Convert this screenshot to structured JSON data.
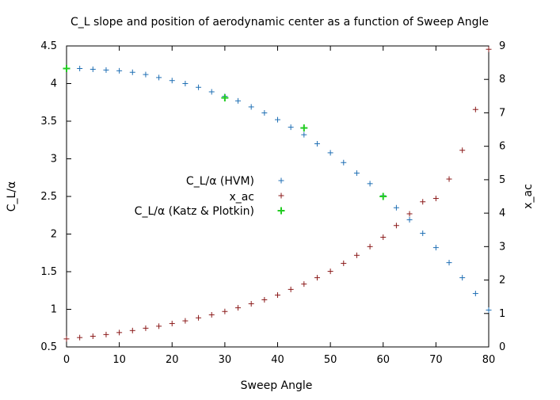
{
  "chart_data": {
    "type": "scatter",
    "title": "C_L slope and position of aerodynamic center as a function of Sweep Angle",
    "xlabel": "Sweep Angle",
    "ylabel": "C_L/α",
    "y2label": "x_ac",
    "xlim": [
      0,
      80
    ],
    "ylim": [
      0.5,
      4.5
    ],
    "y2lim": [
      0,
      9
    ],
    "grid": false,
    "legend_position": "center-left",
    "x_ticks": [
      "0",
      "10",
      "20",
      "30",
      "40",
      "50",
      "60",
      "70",
      "80"
    ],
    "y_ticks": [
      "0.5",
      "1",
      "1.5",
      "2",
      "2.5",
      "3",
      "3.5",
      "4",
      "4.5"
    ],
    "y2_ticks": [
      "0",
      "1",
      "2",
      "3",
      "4",
      "5",
      "6",
      "7",
      "8",
      "9"
    ],
    "series": [
      {
        "name": "C_L/α (HVM)",
        "axis": "y",
        "color": "#1f6fb4",
        "marker": "plus",
        "x": [
          0,
          2.5,
          5,
          7.5,
          10,
          12.5,
          15,
          17.5,
          20,
          22.5,
          25,
          27.5,
          30,
          32.5,
          35,
          37.5,
          40,
          42.5,
          45,
          47.5,
          50,
          52.5,
          55,
          57.5,
          60,
          62.5,
          65,
          67.5,
          70,
          72.5,
          75,
          77.5,
          80
        ],
        "y": [
          4.2,
          4.2,
          4.19,
          4.18,
          4.17,
          4.15,
          4.12,
          4.08,
          4.04,
          4.0,
          3.95,
          3.89,
          3.83,
          3.77,
          3.69,
          3.61,
          3.52,
          3.42,
          3.32,
          3.2,
          3.08,
          2.95,
          2.81,
          2.67,
          2.51,
          2.35,
          2.19,
          2.01,
          1.82,
          1.62,
          1.42,
          1.21,
          0.99
        ]
      },
      {
        "name": "x_ac",
        "axis": "y2",
        "color": "#8b1a1a",
        "marker": "plus",
        "x": [
          0,
          2.5,
          5,
          7.5,
          10,
          12.5,
          15,
          17.5,
          20,
          22.5,
          25,
          27.5,
          30,
          32.5,
          35,
          37.5,
          40,
          42.5,
          45,
          47.5,
          50,
          52.5,
          55,
          57.5,
          60,
          62.5,
          65,
          67.5,
          70,
          72.5,
          75,
          77.5,
          80
        ],
        "y": [
          0.24,
          0.28,
          0.32,
          0.37,
          0.43,
          0.49,
          0.56,
          0.62,
          0.7,
          0.78,
          0.87,
          0.96,
          1.06,
          1.17,
          1.29,
          1.41,
          1.55,
          1.72,
          1.88,
          2.07,
          2.26,
          2.5,
          2.74,
          3.0,
          3.28,
          3.63,
          3.98,
          4.34,
          4.44,
          5.02,
          5.88,
          7.1,
          8.9
        ]
      },
      {
        "name": "C_L/α (Katz & Plotkin)",
        "axis": "y",
        "color": "#22cc22",
        "marker": "plus-bold",
        "x": [
          0,
          30,
          45,
          60
        ],
        "y": [
          4.2,
          3.81,
          3.41,
          2.5
        ]
      }
    ]
  }
}
